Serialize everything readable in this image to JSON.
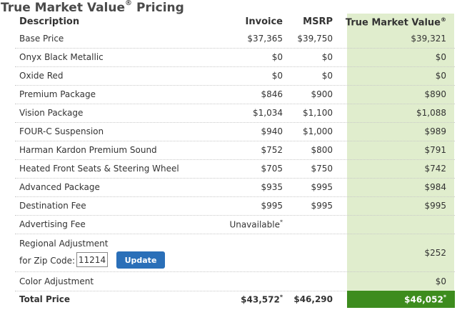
{
  "page": {
    "title": "True Market Value",
    "title_reg": "®",
    "title_suffix": " Pricing"
  },
  "headers": {
    "description": "Description",
    "invoice": "Invoice",
    "msrp": "MSRP",
    "tmv": "True Market Value",
    "tmv_reg": "®"
  },
  "rows": [
    {
      "description": "Base Price",
      "invoice": "$37,365",
      "msrp": "$39,750",
      "tmv": "$39,321"
    },
    {
      "description": "Onyx Black Metallic",
      "invoice": "$0",
      "msrp": "$0",
      "tmv": "$0"
    },
    {
      "description": "Oxide Red",
      "invoice": "$0",
      "msrp": "$0",
      "tmv": "$0"
    },
    {
      "description": "Premium Package",
      "invoice": "$846",
      "msrp": "$900",
      "tmv": "$890"
    },
    {
      "description": "Vision Package",
      "invoice": "$1,034",
      "msrp": "$1,100",
      "tmv": "$1,088"
    },
    {
      "description": "FOUR-C Suspension",
      "invoice": "$940",
      "msrp": "$1,000",
      "tmv": "$989"
    },
    {
      "description": "Harman Kardon Premium Sound",
      "invoice": "$752",
      "msrp": "$800",
      "tmv": "$791"
    },
    {
      "description": "Heated Front Seats & Steering Wheel",
      "invoice": "$705",
      "msrp": "$750",
      "tmv": "$742"
    },
    {
      "description": "Advanced Package",
      "invoice": "$935",
      "msrp": "$995",
      "tmv": "$984"
    },
    {
      "description": "Destination Fee",
      "invoice": "$995",
      "msrp": "$995",
      "tmv": "$995"
    }
  ],
  "advertising": {
    "description": "Advertising Fee",
    "invoice": "Unavailable",
    "invoice_mark": "*"
  },
  "regional": {
    "description": "Regional Adjustment",
    "zip_label": "for Zip Code:",
    "zip_value": "11214",
    "update_label": "Update",
    "tmv": "$252"
  },
  "color_adjustment": {
    "description": "Color Adjustment",
    "tmv": "$0"
  },
  "total": {
    "description": "Total Price",
    "invoice": "$43,572",
    "invoice_mark": "*",
    "msrp": "$46,290",
    "tmv": "$46,052",
    "tmv_mark": "*"
  },
  "colors": {
    "tmv_column_bg": "#e0edcd",
    "tmv_total_bg": "#3d8c1e",
    "update_button": "#2a6fb8"
  }
}
